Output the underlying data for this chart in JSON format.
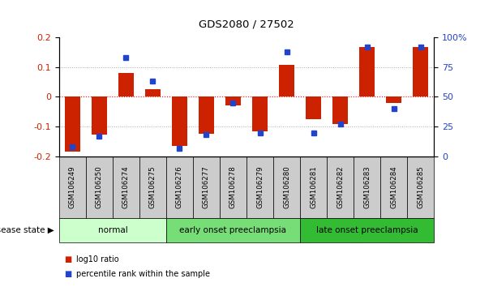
{
  "title": "GDS2080 / 27502",
  "samples": [
    "GSM106249",
    "GSM106250",
    "GSM106274",
    "GSM106275",
    "GSM106276",
    "GSM106277",
    "GSM106278",
    "GSM106279",
    "GSM106280",
    "GSM106281",
    "GSM106282",
    "GSM106283",
    "GSM106284",
    "GSM106285"
  ],
  "log10_ratio": [
    -0.185,
    -0.128,
    0.08,
    0.025,
    -0.165,
    -0.125,
    -0.03,
    -0.115,
    0.108,
    -0.075,
    -0.09,
    0.168,
    -0.02,
    0.168
  ],
  "percentile_rank": [
    8,
    17,
    83,
    63,
    7,
    18,
    45,
    20,
    88,
    20,
    27,
    92,
    40,
    92
  ],
  "groups": [
    {
      "label": "normal",
      "start": 0,
      "end": 4,
      "color": "#ccffcc"
    },
    {
      "label": "early onset preeclampsia",
      "start": 4,
      "end": 9,
      "color": "#77dd77"
    },
    {
      "label": "late onset preeclampsia",
      "start": 9,
      "end": 14,
      "color": "#33bb33"
    }
  ],
  "bar_color_red": "#cc2200",
  "bar_color_blue": "#2244cc",
  "ylim_left": [
    -0.2,
    0.2
  ],
  "ylim_right": [
    0,
    100
  ],
  "yticks_left": [
    -0.2,
    -0.1,
    0.0,
    0.1,
    0.2
  ],
  "ytick_labels_left": [
    "-0.2",
    "-0.1",
    "0",
    "0.1",
    "0.2"
  ],
  "yticks_right": [
    0,
    25,
    50,
    75,
    100
  ],
  "ytick_labels_right": [
    "0",
    "25",
    "50",
    "75",
    "100%"
  ],
  "legend_items": [
    "log10 ratio",
    "percentile rank within the sample"
  ],
  "disease_state_label": "disease state",
  "sample_box_color": "#cccccc",
  "bar_width": 0.55
}
